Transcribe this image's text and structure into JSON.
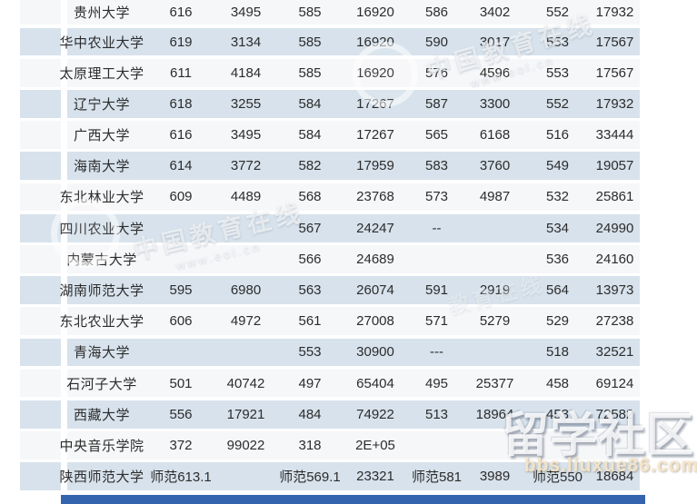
{
  "colors": {
    "row_white": "#f6f7f9",
    "row_blue": "#d7e2ec",
    "accent_bar": "#3464ae",
    "text": "#2c2c2c"
  },
  "table": {
    "rows": [
      {
        "name": "贵州大学",
        "cells": [
          "616",
          "3495",
          "585",
          "16920",
          "586",
          "3402",
          "552",
          "17932"
        ]
      },
      {
        "name": "华中农业大学",
        "cells": [
          "619",
          "3134",
          "585",
          "16920",
          "590",
          "3017",
          "553",
          "17567"
        ]
      },
      {
        "name": "太原理工大学",
        "cells": [
          "611",
          "4184",
          "585",
          "16920",
          "576",
          "4596",
          "553",
          "17567"
        ]
      },
      {
        "name": "辽宁大学",
        "cells": [
          "618",
          "3255",
          "584",
          "17267",
          "587",
          "3300",
          "552",
          "17932"
        ]
      },
      {
        "name": "广西大学",
        "cells": [
          "616",
          "3495",
          "584",
          "17267",
          "565",
          "6168",
          "516",
          "33444"
        ]
      },
      {
        "name": "海南大学",
        "cells": [
          "614",
          "3772",
          "582",
          "17959",
          "583",
          "3760",
          "549",
          "19057"
        ]
      },
      {
        "name": "东北林业大学",
        "cells": [
          "609",
          "4489",
          "568",
          "23768",
          "573",
          "4987",
          "532",
          "25861"
        ]
      },
      {
        "name": "四川农业大学",
        "cells": [
          "",
          "",
          "567",
          "24247",
          "--",
          "",
          "534",
          "24990"
        ]
      },
      {
        "name": "内蒙古大学",
        "cells": [
          "",
          "",
          "566",
          "24689",
          "",
          "",
          "536",
          "24160"
        ]
      },
      {
        "name": "湖南师范大学",
        "cells": [
          "595",
          "6980",
          "563",
          "26074",
          "591",
          "2919",
          "564",
          "13973"
        ]
      },
      {
        "name": "东北农业大学",
        "cells": [
          "606",
          "4972",
          "561",
          "27008",
          "571",
          "5279",
          "529",
          "27238"
        ]
      },
      {
        "name": "青海大学",
        "cells": [
          "",
          "",
          "553",
          "30900",
          "---",
          "",
          "518",
          "32521"
        ]
      },
      {
        "name": "石河子大学",
        "cells": [
          "501",
          "40742",
          "497",
          "65404",
          "495",
          "25377",
          "458",
          "69124"
        ]
      },
      {
        "name": "西藏大学",
        "cells": [
          "556",
          "17921",
          "484",
          "74922",
          "513",
          "18964",
          "453",
          "72582"
        ]
      },
      {
        "name": "中央音乐学院",
        "cells": [
          "372",
          "99022",
          "318",
          "2E+05",
          "",
          "",
          "",
          ""
        ]
      },
      {
        "name": "陕西师范大学",
        "cells": [
          "师范613.1",
          "",
          "师范569.1",
          "23321",
          "师范581",
          "3989",
          "师范550",
          "18684"
        ]
      }
    ]
  },
  "watermarks": {
    "brand1": "中国教育在线",
    "brand1_sub": "www.eol.cn",
    "brand2": "中国教育在线",
    "brand2_sub": "www.eol.cn",
    "brand3": "教育在线",
    "community": "留学社区",
    "community_sub": "bbs.liuxue86.com"
  }
}
